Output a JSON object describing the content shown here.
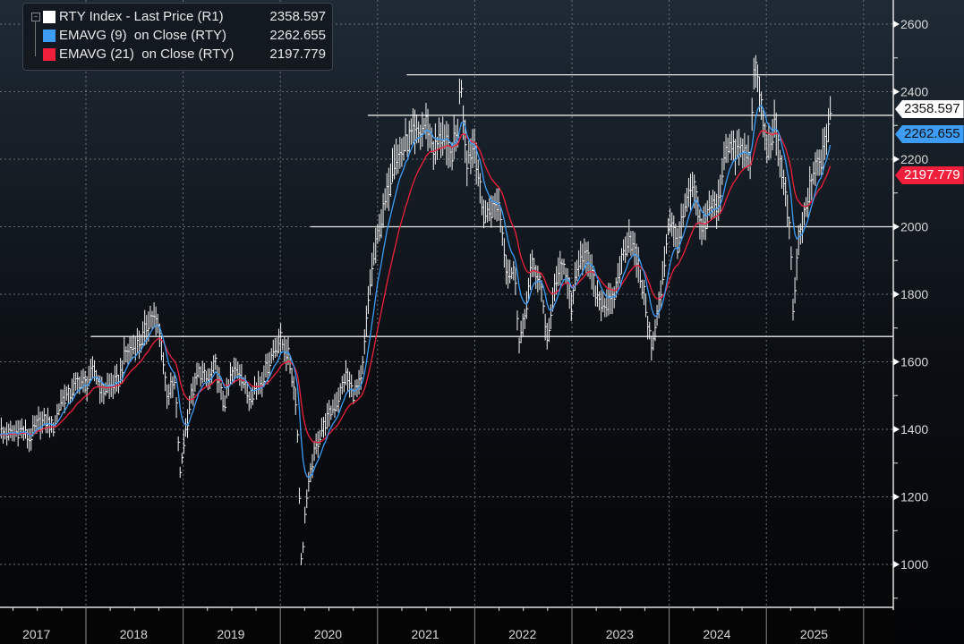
{
  "legend": {
    "items": [
      {
        "name": "RTY Index - Last Price (R1)",
        "value": "2358.597",
        "color": "#ffffff"
      },
      {
        "name": "EMAVG (9)  on Close (RTY)",
        "value": "2262.655",
        "color": "#3d9cf5"
      },
      {
        "name": "EMAVG (21)  on Close (RTY)",
        "value": "2197.779",
        "color": "#f0203c"
      }
    ],
    "collapse_symbol": "−"
  },
  "chart_data": {
    "type": "line",
    "title": "RTY Index - Last Price",
    "xlabel": "",
    "ylabel": "",
    "ylim": [
      878,
      2671
    ],
    "xlim": [
      2017.11,
      2026.3
    ],
    "y_ticks": [
      1000,
      1200,
      1400,
      1600,
      1800,
      2000,
      2200,
      2400,
      2600
    ],
    "y_tick_labels": [
      "1000",
      "1200",
      "1400",
      "1600",
      "1800",
      "2000",
      "2200",
      "2400",
      "2600"
    ],
    "x_tick_labels": [
      "2017",
      "2018",
      "2019",
      "2020",
      "2021",
      "2022",
      "2023",
      "2024",
      "2025"
    ],
    "grid": true,
    "legend_position": "top-left",
    "monthly_close_start": "2017-02",
    "monthly_close": [
      1387,
      1386,
      1400,
      1370,
      1415,
      1425,
      1405,
      1490,
      1502,
      1544,
      1535,
      1575,
      1512,
      1529,
      1541,
      1634,
      1643,
      1670,
      1740,
      1696,
      1511,
      1533,
      1348,
      1499,
      1575,
      1540,
      1591,
      1466,
      1567,
      1575,
      1495,
      1523,
      1562,
      1624,
      1668,
      1614,
      1476,
      1153,
      1310,
      1394,
      1441,
      1480,
      1561,
      1507,
      1538,
      1819,
      1975,
      2073,
      2201,
      2221,
      2266,
      2269,
      2311,
      2226,
      2273,
      2204,
      2297,
      2199,
      2245,
      2028,
      2048,
      2070,
      1864,
      1864,
      1708,
      1885,
      1845,
      1665,
      1846,
      1887,
      1761,
      1931,
      1897,
      1802,
      1768,
      1774,
      1889,
      1978,
      1899,
      1785,
      1662,
      1810,
      2027,
      1947,
      2054,
      2124,
      1973,
      2070,
      2048,
      2254,
      2218,
      2230,
      2197,
      2434,
      2230,
      2288,
      2163,
      1971,
      1965,
      2067,
      2175,
      2211,
      2359
    ],
    "extremes": [
      {
        "t": 2018.67,
        "value": 1742
      },
      {
        "t": 2018.97,
        "value": 1267
      },
      {
        "t": 2020.22,
        "value": 966
      },
      {
        "t": 2021.85,
        "value": 2459
      },
      {
        "t": 2022.45,
        "value": 1650
      },
      {
        "t": 2023.82,
        "value": 1636
      },
      {
        "t": 2024.87,
        "value": 2466
      },
      {
        "t": 2025.27,
        "value": 1733
      }
    ],
    "series": [
      {
        "name": "RTY Index - Last Price",
        "last": 2358.597,
        "color": "#ffffff"
      },
      {
        "name": "EMAVG (9)",
        "period": 9,
        "last": 2262.655,
        "color": "#3d9cf5"
      },
      {
        "name": "EMAVG (21)",
        "period": 21,
        "last": 2197.779,
        "color": "#f0203c"
      }
    ],
    "horizontal_levels": [
      {
        "value": 2450,
        "from": 2021.3
      },
      {
        "value": 2330,
        "from": 2020.9
      },
      {
        "value": 2000,
        "from": 2020.31
      },
      {
        "value": 1675,
        "from": 2018.05
      }
    ]
  }
}
